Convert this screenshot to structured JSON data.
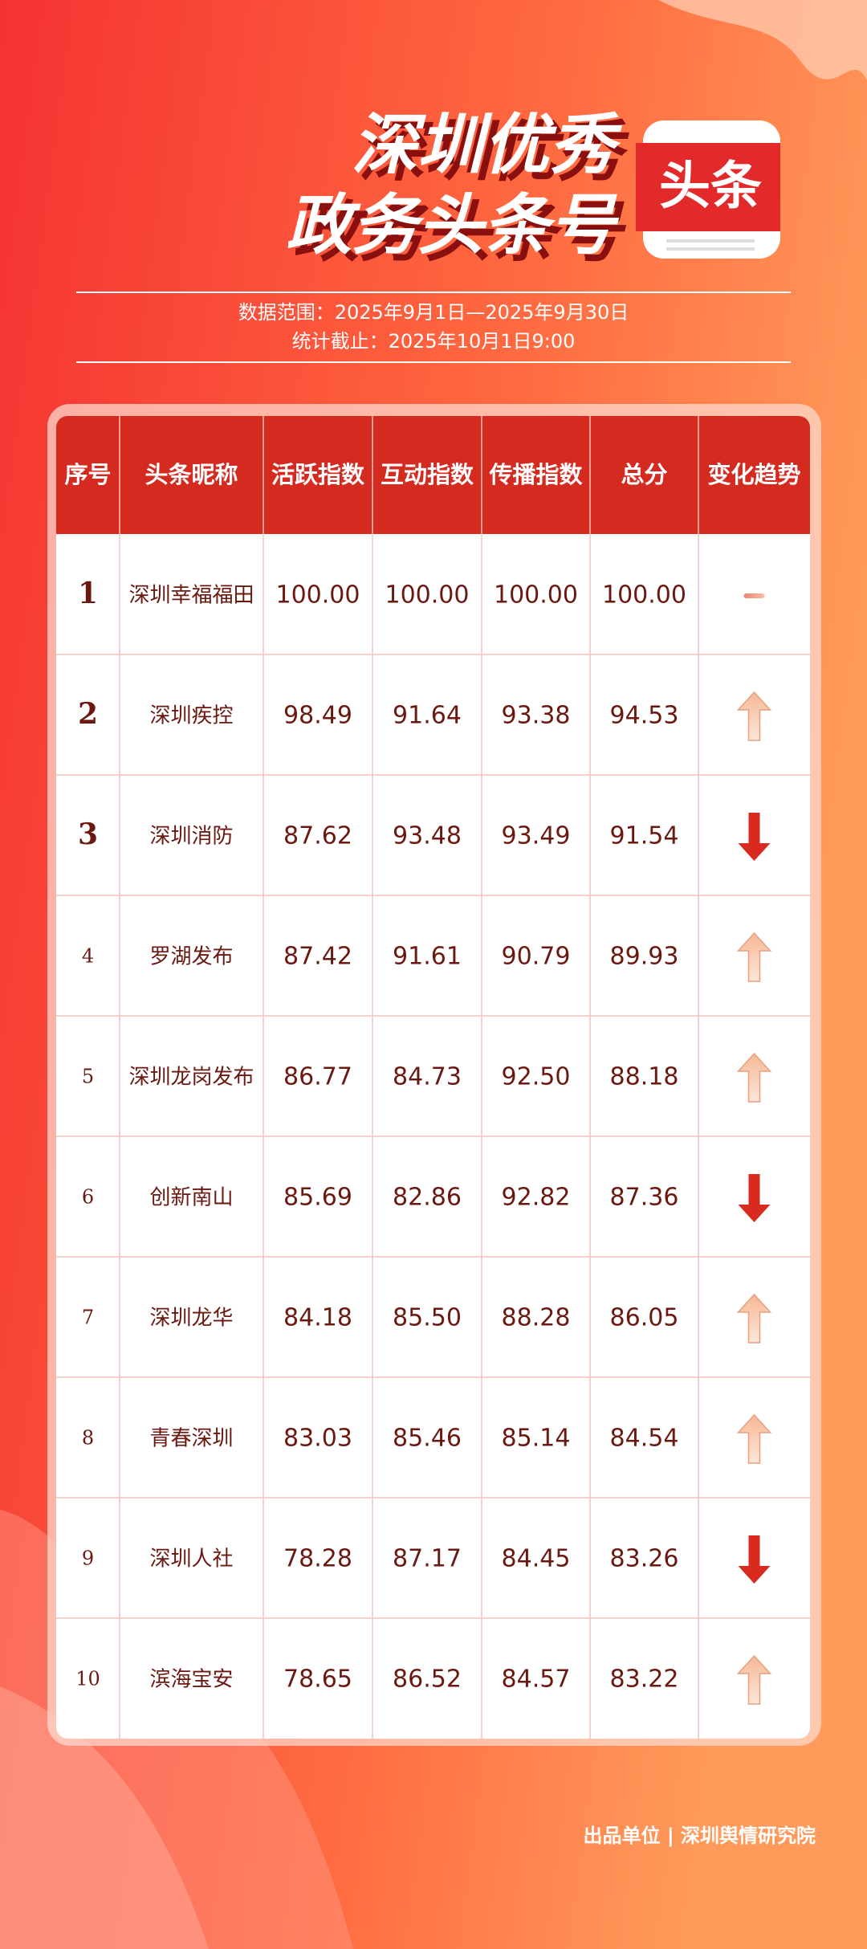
{
  "header": {
    "title_line1": "深圳优秀",
    "title_line2": "政务头条号",
    "logo_text": "头条",
    "date_range": "数据范围：2025年9月1日—2025年9月30日",
    "cutoff": "统计截止：2025年10月1日9:00"
  },
  "table": {
    "columns": [
      "序号",
      "头条昵称",
      "活跃指数",
      "互动指数",
      "传播指数",
      "总分",
      "变化趋势"
    ],
    "rows": [
      {
        "rank": "1",
        "name": "深圳幸福福田",
        "active": "100.00",
        "interact": "100.00",
        "spread": "100.00",
        "total": "100.00",
        "trend": "same"
      },
      {
        "rank": "2",
        "name": "深圳疾控",
        "active": "98.49",
        "interact": "91.64",
        "spread": "93.38",
        "total": "94.53",
        "trend": "up"
      },
      {
        "rank": "3",
        "name": "深圳消防",
        "active": "87.62",
        "interact": "93.48",
        "spread": "93.49",
        "total": "91.54",
        "trend": "down"
      },
      {
        "rank": "4",
        "name": "罗湖发布",
        "active": "87.42",
        "interact": "91.61",
        "spread": "90.79",
        "total": "89.93",
        "trend": "up"
      },
      {
        "rank": "5",
        "name": "深圳龙岗发布",
        "active": "86.77",
        "interact": "84.73",
        "spread": "92.50",
        "total": "88.18",
        "trend": "up"
      },
      {
        "rank": "6",
        "name": "创新南山",
        "active": "85.69",
        "interact": "82.86",
        "spread": "92.82",
        "total": "87.36",
        "trend": "down"
      },
      {
        "rank": "7",
        "name": "深圳龙华",
        "active": "84.18",
        "interact": "85.50",
        "spread": "88.28",
        "total": "86.05",
        "trend": "up"
      },
      {
        "rank": "8",
        "name": "青春深圳",
        "active": "83.03",
        "interact": "85.46",
        "spread": "85.14",
        "total": "84.54",
        "trend": "up"
      },
      {
        "rank": "9",
        "name": "深圳人社",
        "active": "78.28",
        "interact": "87.17",
        "spread": "84.45",
        "total": "83.26",
        "trend": "down"
      },
      {
        "rank": "10",
        "name": "滨海宝安",
        "active": "78.65",
        "interact": "86.52",
        "spread": "84.57",
        "total": "83.22",
        "trend": "up"
      }
    ]
  },
  "footer": {
    "credit": "出品单位 | 深圳舆情研究院"
  }
}
